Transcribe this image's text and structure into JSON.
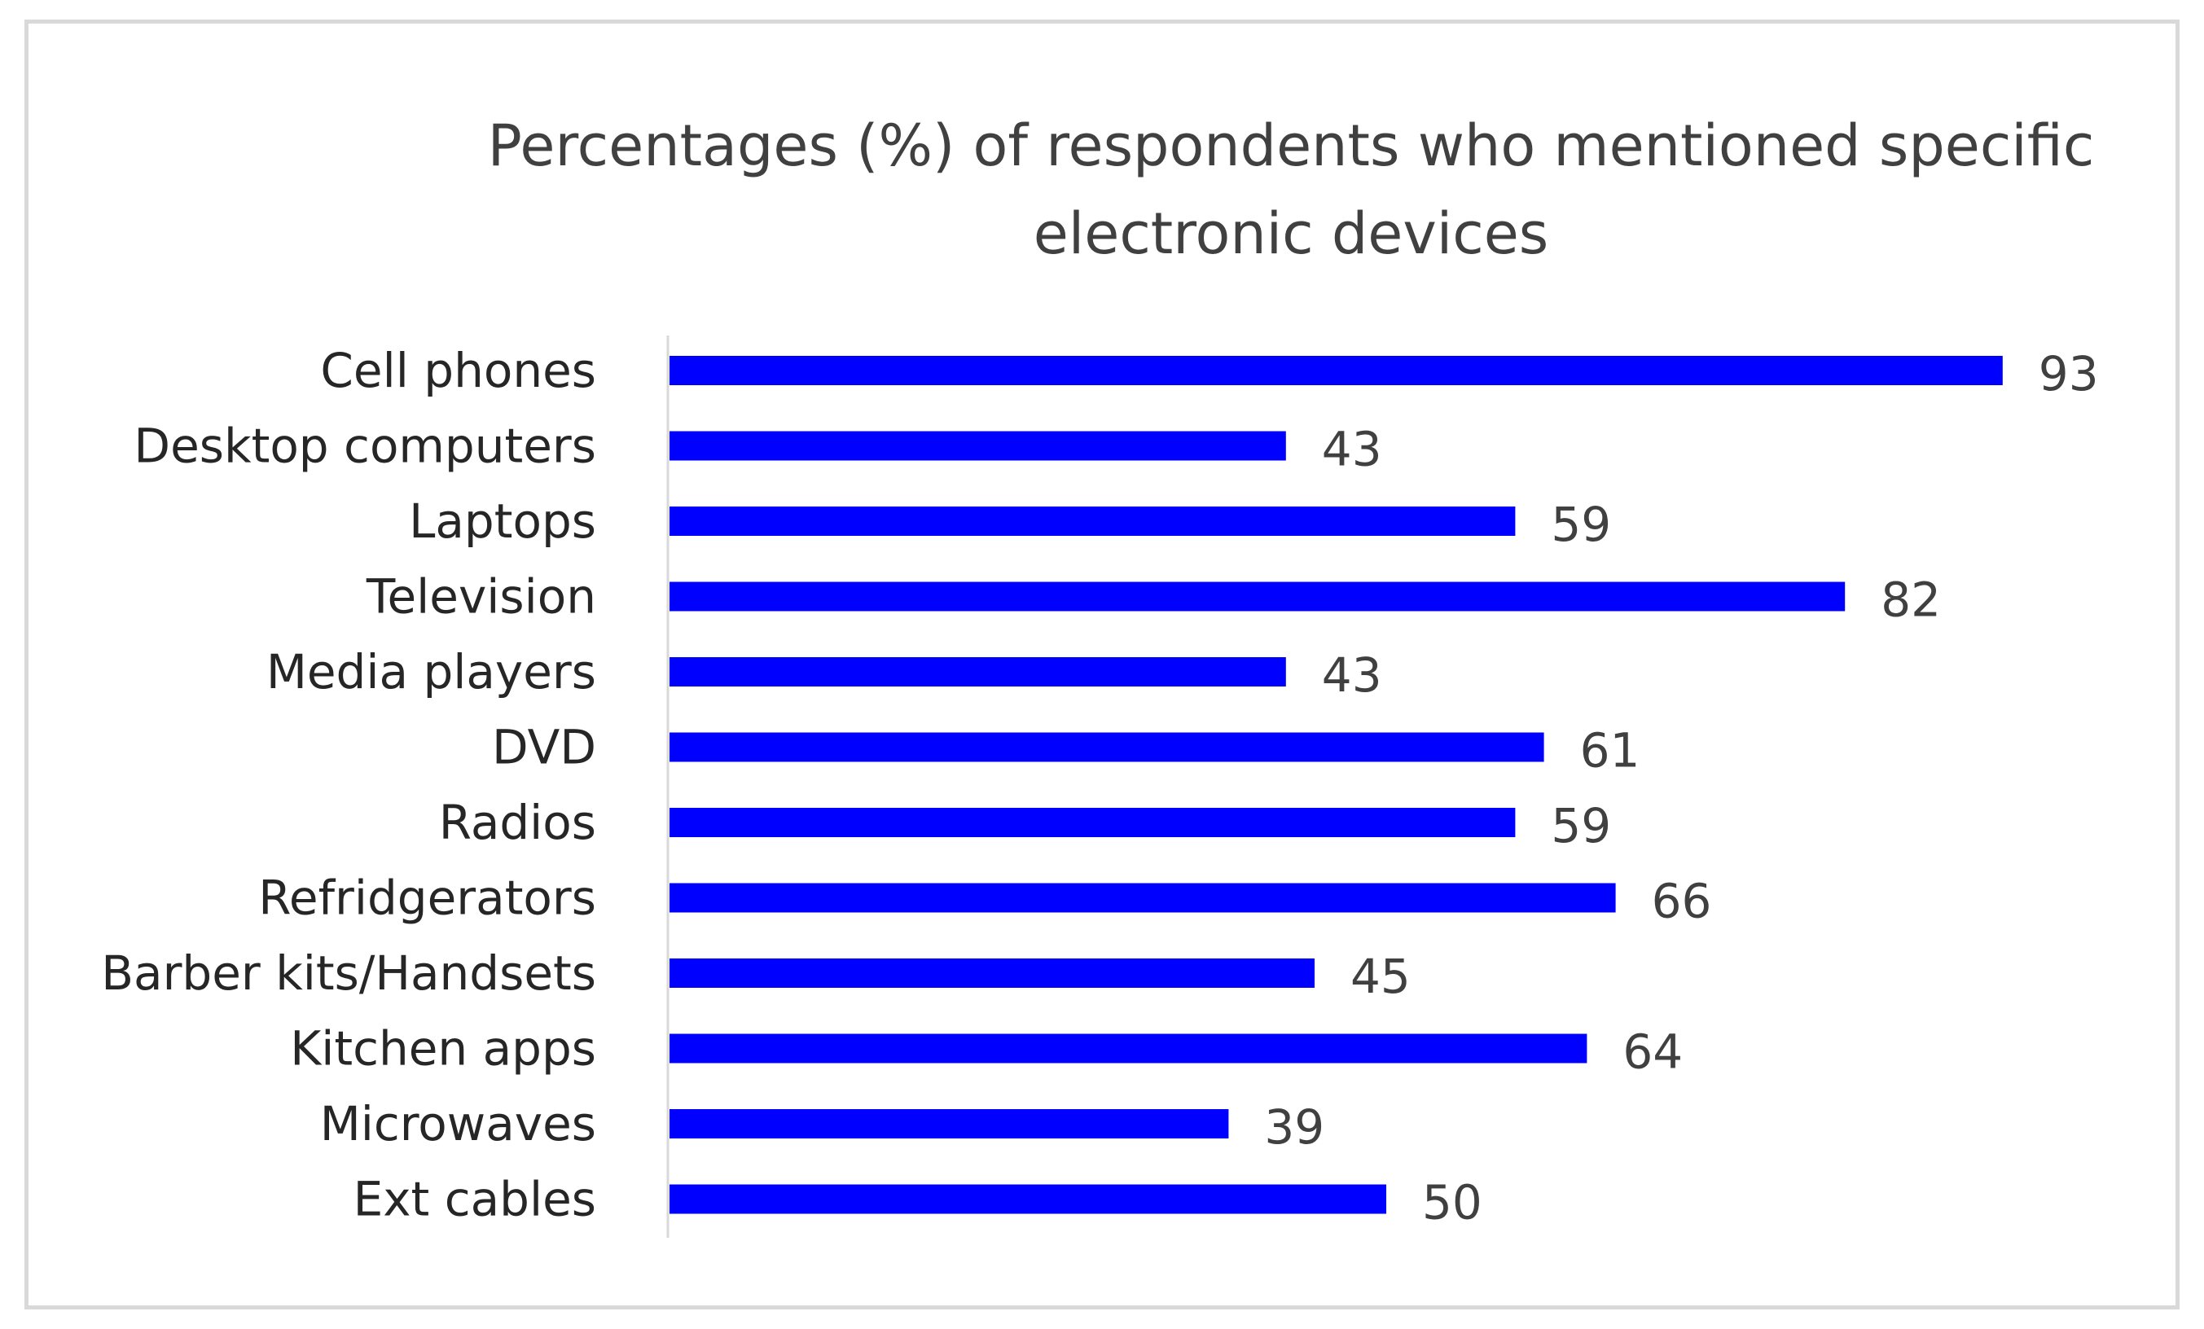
{
  "chart_data": {
    "type": "bar",
    "orientation": "horizontal",
    "title": "Percentages (%) of respondents  who mentioned specific electronic devices",
    "title_lines": [
      "Percentages (%) of respondents  who mentioned specific",
      "electronic devices"
    ],
    "categories": [
      "Cell phones",
      "Desktop computers",
      "Laptops",
      "Television",
      "Media players",
      "DVD",
      "Radios",
      "Refridgerators",
      "Barber kits/Handsets",
      "Kitchen apps",
      "Microwaves",
      "Ext cables"
    ],
    "values": [
      93,
      43,
      59,
      82,
      43,
      61,
      59,
      66,
      45,
      64,
      39,
      50
    ],
    "xlim": [
      0,
      100
    ],
    "xlabel": "",
    "ylabel": "",
    "grid": false,
    "legend": "none",
    "data_labels": true,
    "bar_color": "#0000ff",
    "axis_color": "#d9d9d9"
  }
}
